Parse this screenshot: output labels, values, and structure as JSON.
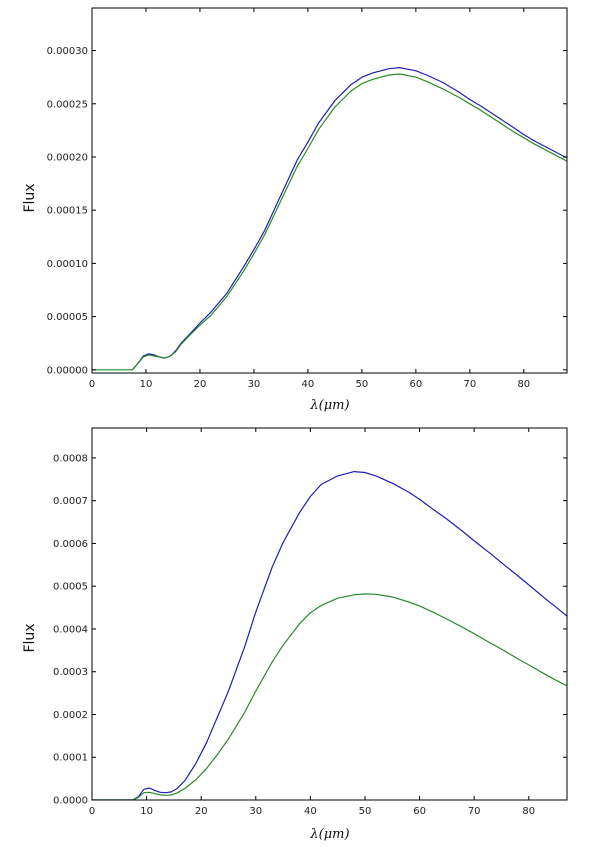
{
  "chart_data": [
    {
      "type": "line",
      "xlabel": "λ(μm)",
      "ylabel": "Flux",
      "xlim": [
        0,
        88
      ],
      "ylim": [
        -3e-06,
        0.00034
      ],
      "xticks": [
        0,
        10,
        20,
        30,
        40,
        50,
        60,
        70,
        80
      ],
      "xtick_labels": [
        "0",
        "10",
        "20",
        "30",
        "40",
        "50",
        "60",
        "70",
        "80"
      ],
      "yticks": [
        0.0,
        5e-05,
        0.0001,
        0.00015,
        0.0002,
        0.00025,
        0.0003
      ],
      "ytick_labels": [
        "0.00000",
        "0.00005",
        "0.00010",
        "0.00015",
        "0.00020",
        "0.00025",
        "0.00030"
      ],
      "grid": false,
      "series": [
        {
          "color": "#1f1fb4",
          "x": [
            7.5,
            8.5,
            9.5,
            10.5,
            11.5,
            12.5,
            13.5,
            14.5,
            15.5,
            16.5,
            18,
            20,
            22,
            25,
            28,
            30,
            32,
            35,
            38,
            40,
            42,
            45,
            48,
            50,
            52,
            55,
            57,
            58,
            60,
            62,
            65,
            68,
            70,
            72,
            75,
            78,
            80,
            82,
            85,
            88
          ],
          "y": [
            0.0,
            6e-06,
            1.3e-05,
            1.5e-05,
            1.4e-05,
            1.2e-05,
            1.1e-05,
            1.3e-05,
            1.8e-05,
            2.5e-05,
            3.3e-05,
            4.4e-05,
            5.4e-05,
            7.2e-05,
            9.6e-05,
            0.000113,
            0.000131,
            0.000164,
            0.000197,
            0.000214,
            0.000232,
            0.000253,
            0.000268,
            0.000275,
            0.000279,
            0.000283,
            0.000284,
            0.000283,
            0.000281,
            0.000277,
            0.00027,
            0.000261,
            0.000254,
            0.000248,
            0.000238,
            0.000228,
            0.000221,
            0.000215,
            0.000207,
            0.000199
          ]
        },
        {
          "color": "#2a8a2a",
          "x": [
            0,
            2,
            4,
            6,
            7.5,
            8.5,
            9.5,
            10.5,
            11.5,
            12.5,
            13.5,
            14.5,
            15.5,
            16.5,
            18,
            20,
            22,
            25,
            28,
            30,
            32,
            35,
            38,
            40,
            42,
            45,
            48,
            50,
            52,
            55,
            57,
            58,
            60,
            62,
            65,
            68,
            70,
            72,
            75,
            78,
            80,
            82,
            85,
            88
          ],
          "y": [
            0.0,
            0.0,
            0.0,
            0.0,
            0.0,
            6e-06,
            1.2e-05,
            1.4e-05,
            1.3e-05,
            1.2e-05,
            1.1e-05,
            1.3e-05,
            1.7e-05,
            2.4e-05,
            3.2e-05,
            4.2e-05,
            5.1e-05,
            6.9e-05,
            9.2e-05,
            0.000109,
            0.000127,
            0.000159,
            0.000191,
            0.000208,
            0.000226,
            0.000247,
            0.000262,
            0.000269,
            0.000273,
            0.000277,
            0.000278,
            0.000277,
            0.000275,
            0.000271,
            0.000264,
            0.000256,
            0.00025,
            0.000244,
            0.000234,
            0.000224,
            0.000218,
            0.000212,
            0.000204,
            0.000196
          ]
        }
      ]
    },
    {
      "type": "line",
      "xlabel": "λ(μm)",
      "ylabel": "Flux",
      "xlim": [
        0,
        87
      ],
      "ylim": [
        0,
        0.00087
      ],
      "xticks": [
        0,
        10,
        20,
        30,
        40,
        50,
        60,
        70,
        80
      ],
      "xtick_labels": [
        "0",
        "10",
        "20",
        "30",
        "40",
        "50",
        "60",
        "70",
        "80"
      ],
      "yticks": [
        0.0,
        0.0001,
        0.0002,
        0.0003,
        0.0004,
        0.0005,
        0.0006,
        0.0007,
        0.0008
      ],
      "ytick_labels": [
        "0.0000",
        "0.0001",
        "0.0002",
        "0.0003",
        "0.0004",
        "0.0005",
        "0.0006",
        "0.0007",
        "0.0008"
      ],
      "grid": false,
      "series": [
        {
          "color": "#1f1fb4",
          "x": [
            0,
            3,
            6,
            7.5,
            8.5,
            9.5,
            10.5,
            11.5,
            12.5,
            13.5,
            14.5,
            15.5,
            17,
            19,
            21,
            23,
            25,
            28,
            30,
            33,
            35,
            38,
            40,
            42,
            45,
            48,
            50,
            52,
            55,
            58,
            60,
            63,
            65,
            68,
            70,
            73,
            75,
            78,
            80,
            83,
            85,
            87
          ],
          "y": [
            0.0,
            0.0,
            0.0,
            0.0,
            8e-06,
            2.5e-05,
            2.8e-05,
            2.2e-05,
            1.8e-05,
            1.7e-05,
            1.9e-05,
            2.6e-05,
            4.5e-05,
            8.5e-05,
            0.000135,
            0.000195,
            0.000255,
            0.00036,
            0.00044,
            0.000545,
            0.000602,
            0.000672,
            0.00071,
            0.000738,
            0.000758,
            0.000768,
            0.000766,
            0.000758,
            0.000741,
            0.00072,
            0.000703,
            0.000675,
            0.000657,
            0.000627,
            0.000606,
            0.000576,
            0.000555,
            0.000524,
            0.000503,
            0.000471,
            0.000451,
            0.00043
          ]
        },
        {
          "color": "#2a8a2a",
          "x": [
            0,
            3,
            6,
            7.5,
            8.5,
            9.5,
            10.5,
            11.5,
            12.5,
            13.5,
            14.5,
            15.5,
            17,
            19,
            21,
            23,
            25,
            28,
            30,
            33,
            35,
            38,
            40,
            42,
            45,
            48,
            50,
            52,
            55,
            58,
            60,
            63,
            65,
            68,
            70,
            73,
            75,
            78,
            80,
            83,
            85,
            87
          ],
          "y": [
            0.0,
            0.0,
            0.0,
            0.0,
            6e-06,
            1.7e-05,
            1.8e-05,
            1.5e-05,
            1.2e-05,
            1.1e-05,
            1.2e-05,
            1.6e-05,
            2.7e-05,
            4.7e-05,
            7.4e-05,
            0.000107,
            0.000143,
            0.000206,
            0.000255,
            0.000323,
            0.000362,
            0.000412,
            0.000438,
            0.000455,
            0.000472,
            0.00048,
            0.000482,
            0.000481,
            0.000475,
            0.000463,
            0.000454,
            0.000436,
            0.000423,
            0.000403,
            0.000389,
            0.000367,
            0.000353,
            0.00033,
            0.000316,
            0.000294,
            0.00028,
            0.000267
          ]
        }
      ]
    }
  ]
}
